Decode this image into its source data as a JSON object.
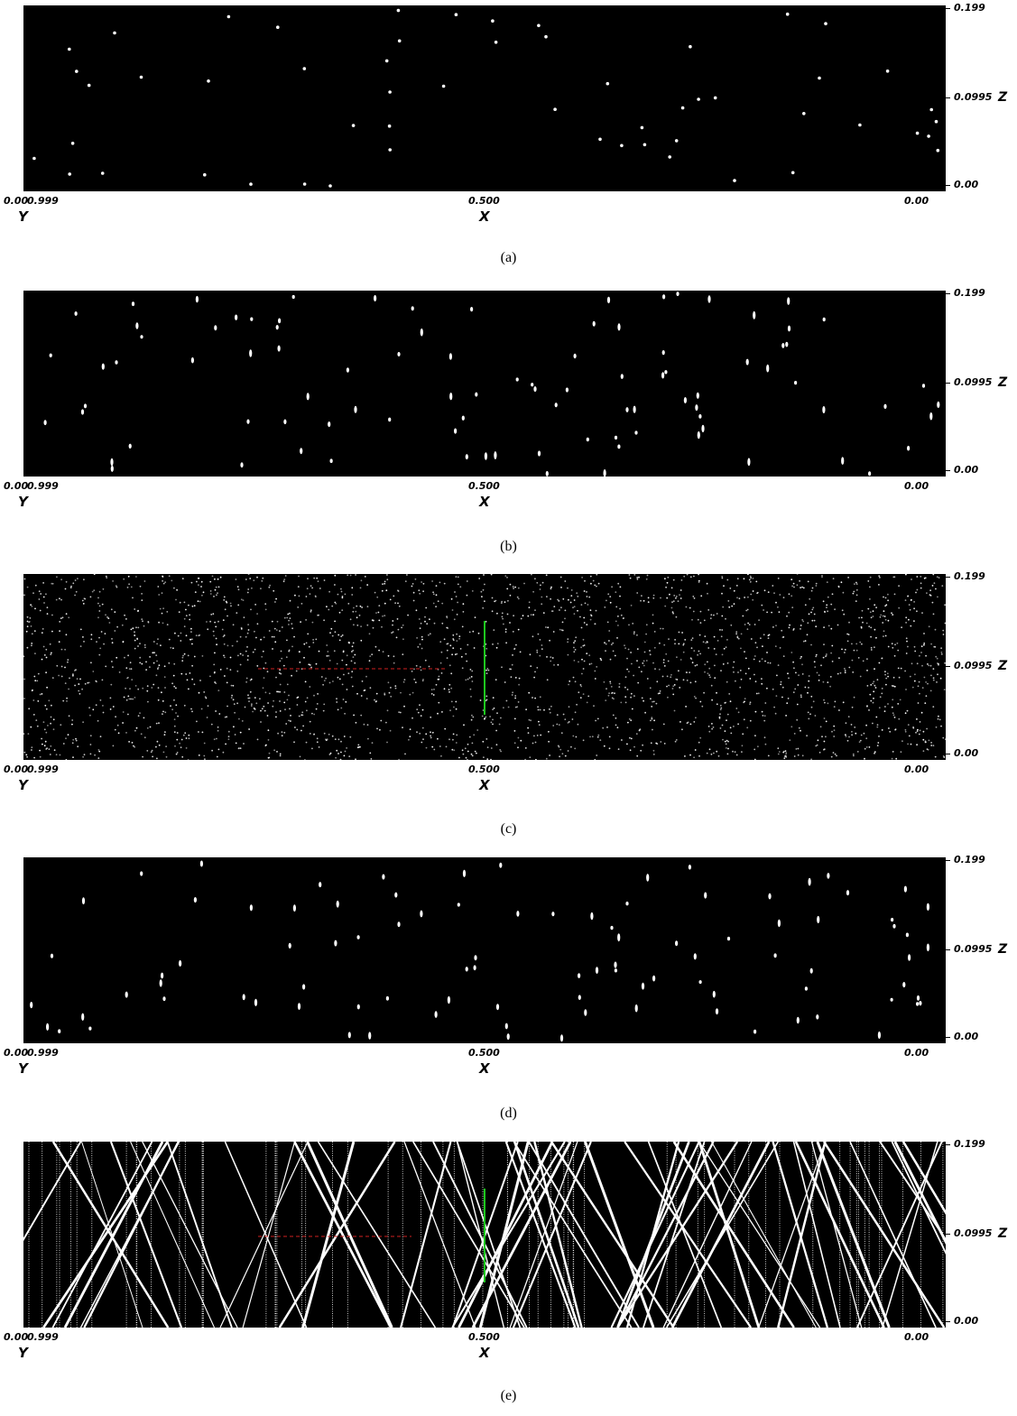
{
  "panels": [
    {
      "caption": "(a)",
      "style": "sparse"
    },
    {
      "caption": "(b)",
      "style": "streaks"
    },
    {
      "caption": "(c)",
      "style": "dense",
      "red_dash": true,
      "green_line": true
    },
    {
      "caption": "(d)",
      "style": "streaks"
    },
    {
      "caption": "(e)",
      "style": "lines",
      "red_dash": true,
      "green_line": true
    }
  ],
  "axes": {
    "z_ticks": [
      "0.199",
      "0.0995",
      "0.00"
    ],
    "z_name": "Z",
    "left_tick": "0.00",
    "left_tick_overlap": "0.999",
    "mid_tick": "0.500",
    "right_tick": "0.00",
    "y_name": "Y",
    "x_name": "X"
  },
  "colors": {
    "background": "#000000",
    "dots": "#ffffff",
    "dash": "#d02020",
    "marker": "#1ec81e"
  }
}
